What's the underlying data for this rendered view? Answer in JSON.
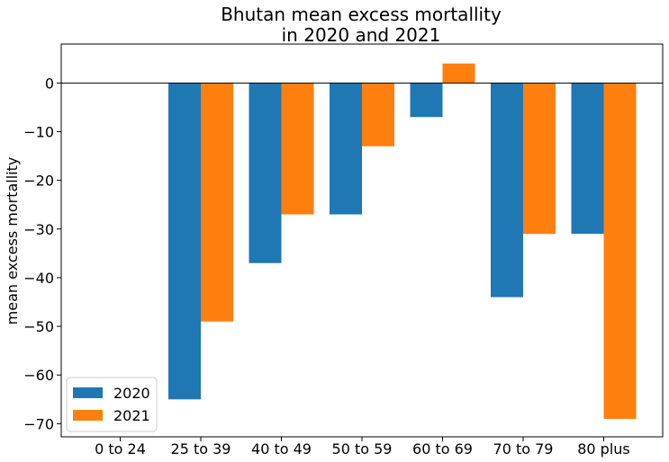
{
  "chart_data": {
    "type": "bar",
    "title": "Bhutan mean excess mortallity\nin 2020 and 2021",
    "title_lines": [
      "Bhutan mean excess mortallity",
      "in 2020 and 2021"
    ],
    "xlabel": "",
    "ylabel": "mean excess mortallity",
    "categories": [
      "0 to 24",
      "25 to 39",
      "40 to 49",
      "50 to 59",
      "60 to 69",
      "70 to 79",
      "80 plus"
    ],
    "series": [
      {
        "name": "2020",
        "color": "#1f77b4",
        "values": [
          0,
          -65,
          -37,
          -27,
          -7,
          -44,
          -31
        ]
      },
      {
        "name": "2021",
        "color": "#ff7f0e",
        "values": [
          0,
          -49,
          -27,
          -13,
          4,
          -31,
          -69
        ]
      }
    ],
    "yticks": [
      0,
      -10,
      -20,
      -30,
      -40,
      -50,
      -60,
      -70
    ],
    "ylim": [
      -72.7,
      8.0
    ],
    "grid": false,
    "legend": "lower-left",
    "zero_line": true
  }
}
